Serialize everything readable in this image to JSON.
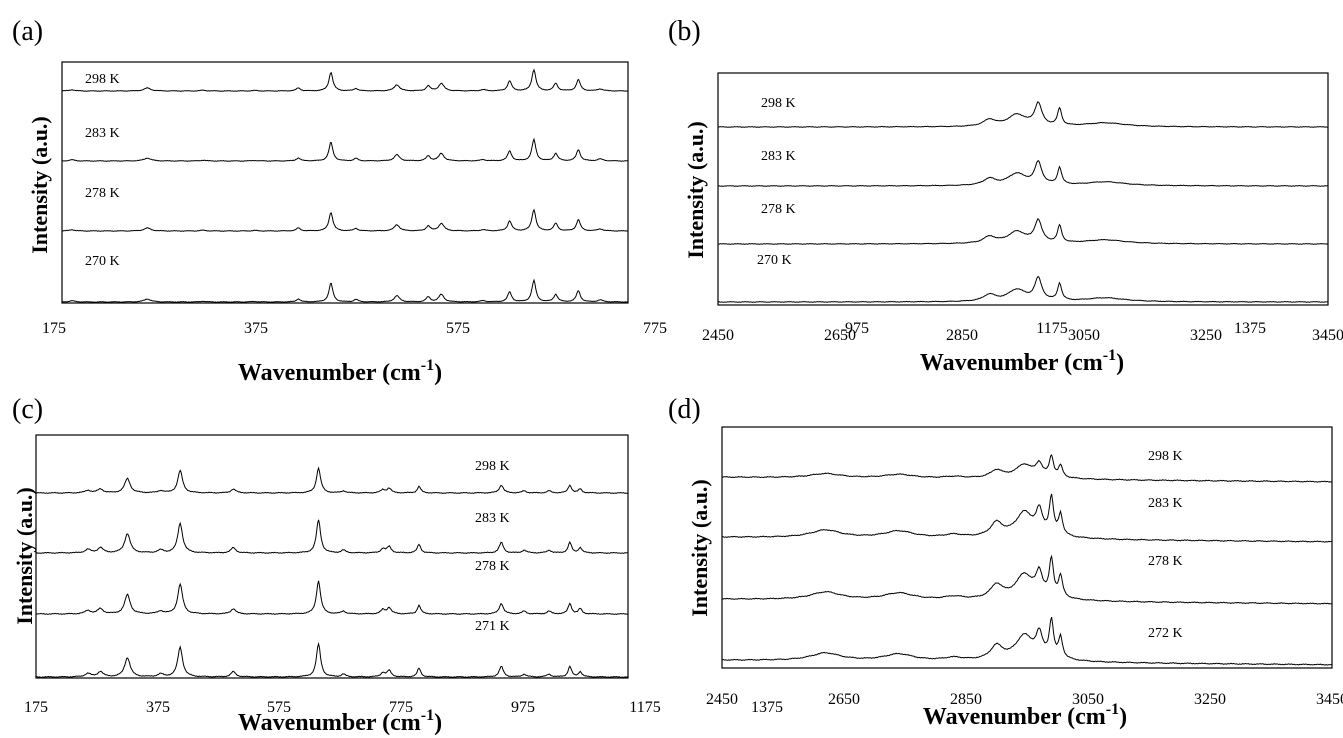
{
  "figure": {
    "ylabel": "Intensity (a.u.)",
    "xlabel_main": "Wavenumber (cm",
    "xlabel_sup": "-1",
    "xlabel_close": ")"
  },
  "chart_data": [
    {
      "panel": "(a)",
      "type": "line",
      "xlabel": "Wavenumber (cm-1)",
      "ylabel": "Intensity (a.u.)",
      "xlim": [
        175,
        1600
      ],
      "x_ticks": [
        "175",
        "375",
        "575",
        "775",
        "975",
        "1175",
        "1375"
      ],
      "baseline": "flat",
      "peaks": [
        [
          200,
          0.05,
          8
        ],
        [
          390,
          0.12,
          10
        ],
        [
          530,
          0.03,
          8
        ],
        [
          660,
          0.02,
          8
        ],
        [
          770,
          0.12,
          6
        ],
        [
          852,
          0.75,
          6
        ],
        [
          915,
          0.1,
          6
        ],
        [
          1018,
          0.25,
          8
        ],
        [
          1097,
          0.2,
          6
        ],
        [
          1130,
          0.3,
          8
        ],
        [
          1235,
          0.05,
          8
        ],
        [
          1302,
          0.4,
          6
        ],
        [
          1363,
          0.85,
          6
        ],
        [
          1418,
          0.3,
          6
        ],
        [
          1475,
          0.45,
          6
        ],
        [
          1530,
          0.08,
          8
        ]
      ],
      "series": [
        {
          "name": "298 K",
          "scale": 1.0
        },
        {
          "name": "283 K",
          "scale": 1.0
        },
        {
          "name": "278 K",
          "scale": 1.0
        },
        {
          "name": "270 K",
          "scale": 1.0
        }
      ]
    },
    {
      "panel": "(b)",
      "type": "line",
      "xlabel": "Wavenumber (cm-1)",
      "ylabel": "Intensity (a.u.)",
      "xlim": [
        2450,
        3450
      ],
      "x_ticks": [
        "2450",
        "2650",
        "2850",
        "3050",
        "3250",
        "3450"
      ],
      "baseline": "flat",
      "peaks": [
        [
          2895,
          0.25,
          12
        ],
        [
          2940,
          0.45,
          18
        ],
        [
          2975,
          0.85,
          7
        ],
        [
          3010,
          0.65,
          4
        ],
        [
          3085,
          0.15,
          40
        ]
      ],
      "series": [
        {
          "name": "298 K",
          "scale": 1.0
        },
        {
          "name": "283 K",
          "scale": 1.0
        },
        {
          "name": "278 K",
          "scale": 1.0
        },
        {
          "name": "270 K",
          "scale": 1.0
        }
      ]
    },
    {
      "panel": "(c)",
      "type": "line",
      "xlabel": "Wavenumber (cm-1)",
      "ylabel": "Intensity (a.u.)",
      "xlim": [
        175,
        1600
      ],
      "x_ticks": [
        "175",
        "375",
        "575",
        "775",
        "975",
        "1175",
        "1375"
      ],
      "baseline": "flat",
      "peaks": [
        [
          300,
          0.1,
          8
        ],
        [
          330,
          0.15,
          8
        ],
        [
          395,
          0.55,
          8
        ],
        [
          475,
          0.08,
          8
        ],
        [
          522,
          0.85,
          7
        ],
        [
          650,
          0.15,
          7
        ],
        [
          855,
          0.95,
          6
        ],
        [
          915,
          0.08,
          6
        ],
        [
          1010,
          0.12,
          6
        ],
        [
          1025,
          0.18,
          6
        ],
        [
          1097,
          0.25,
          5
        ],
        [
          1295,
          0.3,
          6
        ],
        [
          1350,
          0.08,
          6
        ],
        [
          1410,
          0.08,
          6
        ],
        [
          1460,
          0.3,
          5
        ],
        [
          1485,
          0.15,
          5
        ]
      ],
      "series": [
        {
          "name": "298 K",
          "scale": 0.75
        },
        {
          "name": "283 K",
          "scale": 1.0
        },
        {
          "name": "278 K",
          "scale": 1.0
        },
        {
          "name": "271 K",
          "scale": 1.0
        }
      ]
    },
    {
      "panel": "(d)",
      "type": "line",
      "xlabel": "Wavenumber (cm-1)",
      "ylabel": "Intensity (a.u.)",
      "xlim": [
        2450,
        3450
      ],
      "x_ticks": [
        "2450",
        "2650",
        "2850",
        "3050",
        "3250",
        "3450"
      ],
      "baseline": "sloped",
      "peaks": [
        [
          2620,
          0.2,
          30
        ],
        [
          2740,
          0.18,
          30
        ],
        [
          2830,
          0.08,
          20
        ],
        [
          2900,
          0.35,
          12
        ],
        [
          2945,
          0.5,
          15
        ],
        [
          2970,
          0.55,
          6
        ],
        [
          2990,
          0.95,
          4
        ],
        [
          3005,
          0.55,
          4
        ],
        [
          2955,
          0.2,
          40
        ]
      ],
      "series": [
        {
          "name": "298 K",
          "scale": 0.55
        },
        {
          "name": "283 K",
          "scale": 1.0
        },
        {
          "name": "278 K",
          "scale": 1.0
        },
        {
          "name": "272 K",
          "scale": 1.0
        }
      ]
    }
  ]
}
